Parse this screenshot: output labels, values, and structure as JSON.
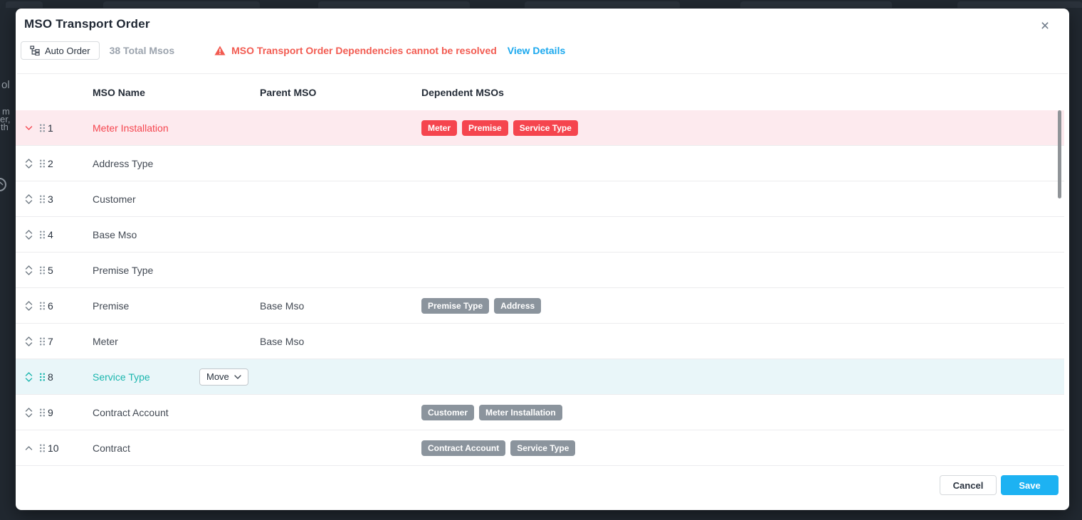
{
  "backdrop": {
    "fragments": [
      "ol",
      "m",
      "er,",
      "th"
    ]
  },
  "modal": {
    "title": "MSO Transport Order",
    "close_icon": "×",
    "toolbar": {
      "auto_order_label": "Auto Order",
      "total_label": "38 Total Msos",
      "warning_text": "MSO Transport Order Dependencies cannot be resolved",
      "view_details_label": "View Details"
    },
    "table": {
      "columns": [
        "MSO Name",
        "Parent MSO",
        "Dependent MSOs"
      ],
      "rows": [
        {
          "num": "1",
          "name": "Meter Installation",
          "parent": "",
          "deps": [
            "Meter",
            "Premise",
            "Service Type"
          ],
          "state": "error",
          "arrows": "down"
        },
        {
          "num": "2",
          "name": "Address Type",
          "parent": "",
          "deps": [],
          "state": "normal",
          "arrows": "both"
        },
        {
          "num": "3",
          "name": "Customer",
          "parent": "",
          "deps": [],
          "state": "normal",
          "arrows": "both"
        },
        {
          "num": "4",
          "name": "Base Mso",
          "parent": "",
          "deps": [],
          "state": "normal",
          "arrows": "both"
        },
        {
          "num": "5",
          "name": "Premise Type",
          "parent": "",
          "deps": [],
          "state": "normal",
          "arrows": "both"
        },
        {
          "num": "6",
          "name": "Premise",
          "parent": "Base Mso",
          "deps": [
            "Premise Type",
            "Address"
          ],
          "state": "normal",
          "arrows": "both"
        },
        {
          "num": "7",
          "name": "Meter",
          "parent": "Base Mso",
          "deps": [],
          "state": "normal",
          "arrows": "both"
        },
        {
          "num": "8",
          "name": "Service Type",
          "parent": "",
          "deps": [],
          "state": "selected",
          "arrows": "both",
          "move_label": "Move"
        },
        {
          "num": "9",
          "name": "Contract Account",
          "parent": "",
          "deps": [
            "Customer",
            "Meter Installation"
          ],
          "state": "normal",
          "arrows": "both"
        },
        {
          "num": "10",
          "name": "Contract",
          "parent": "",
          "deps": [
            "Contract Account",
            "Service Type"
          ],
          "state": "normal",
          "arrows": "up"
        }
      ]
    },
    "footer": {
      "cancel_label": "Cancel",
      "save_label": "Save"
    }
  },
  "colors": {
    "accent_red": "#f5464f",
    "error_row_bg": "#fdeaee",
    "accent_teal": "#1bb6ae",
    "selected_row_bg": "#e9f6f9",
    "link_blue": "#1aa8ee",
    "save_blue": "#1db2f2",
    "badge_gray": "#8b949d",
    "backdrop": "#212830"
  }
}
